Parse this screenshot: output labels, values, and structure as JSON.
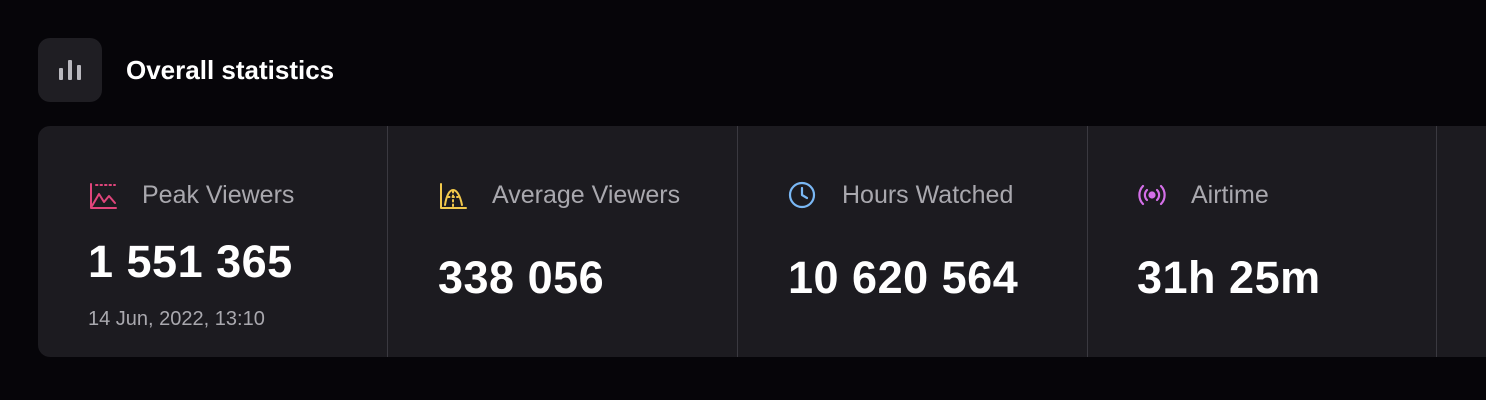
{
  "header": {
    "title": "Overall statistics"
  },
  "stats": [
    {
      "label": "Peak Viewers",
      "value": "1 551 365",
      "note": "14 Jun, 2022, 13:10"
    },
    {
      "label": "Average Viewers",
      "value": "338 056"
    },
    {
      "label": "Hours Watched",
      "value": "10 620 564"
    },
    {
      "label": "Airtime",
      "value": "31h 25m"
    }
  ]
}
